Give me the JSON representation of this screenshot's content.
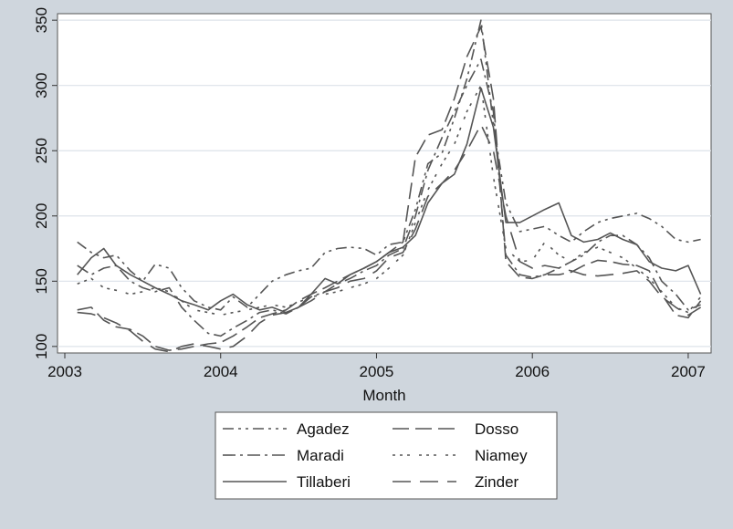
{
  "chart_data": {
    "type": "line",
    "title": "",
    "xlabel": "Month",
    "ylabel": "",
    "xlim": [
      2003,
      2007.1
    ],
    "ylim": [
      95,
      355
    ],
    "x_ticks": [
      "2003",
      "2004",
      "2005",
      "2006",
      "2007"
    ],
    "x_tick_values": [
      2003,
      2004,
      2005,
      2006,
      2007
    ],
    "y_ticks": [
      "100",
      "150",
      "200",
      "250",
      "300",
      "350"
    ],
    "y_tick_values": [
      100,
      150,
      200,
      250,
      300,
      350
    ],
    "grid": "horizontal",
    "legend": {
      "position": "bottom",
      "columns": 2
    },
    "line_color": "#555555",
    "series": [
      {
        "name": "Agadez",
        "dash": "12,5,3,5,3,5",
        "x": [
          2003.08,
          2003.17,
          2003.25,
          2003.33,
          2003.42,
          2003.5,
          2003.58,
          2003.67,
          2003.75,
          2003.83,
          2003.92,
          2004.0,
          2004.08,
          2004.17,
          2004.25,
          2004.33,
          2004.42,
          2004.5,
          2004.58,
          2004.67,
          2004.75,
          2004.83,
          2004.92,
          2005.0,
          2005.08,
          2005.17,
          2005.25,
          2005.33,
          2005.42,
          2005.5,
          2005.58,
          2005.67,
          2005.75,
          2005.83,
          2005.92,
          2006.0,
          2006.08,
          2006.17,
          2006.25,
          2006.33,
          2006.42,
          2006.5,
          2006.58,
          2006.67,
          2006.75,
          2006.83,
          2006.92,
          2007.0,
          2007.08
        ],
        "y": [
          180,
          172,
          168,
          170,
          158,
          150,
          163,
          160,
          145,
          135,
          130,
          128,
          138,
          130,
          140,
          150,
          155,
          158,
          160,
          172,
          175,
          176,
          175,
          170,
          178,
          180,
          205,
          240,
          248,
          275,
          305,
          350,
          270,
          210,
          188,
          190,
          192,
          185,
          180,
          188,
          195,
          198,
          200,
          202,
          198,
          192,
          182,
          180,
          182
        ]
      },
      {
        "name": "Dosso",
        "dash": "18,7",
        "x": [
          2003.08,
          2003.17,
          2003.25,
          2003.33,
          2003.42,
          2003.5,
          2003.58,
          2003.67,
          2003.75,
          2003.83,
          2003.92,
          2004.0,
          2004.08,
          2004.17,
          2004.25,
          2004.33,
          2004.42,
          2004.5,
          2004.58,
          2004.67,
          2004.75,
          2004.83,
          2004.92,
          2005.0,
          2005.08,
          2005.17,
          2005.25,
          2005.33,
          2005.42,
          2005.5,
          2005.58,
          2005.67,
          2005.75,
          2005.83,
          2005.92,
          2006.0,
          2006.08,
          2006.17,
          2006.25,
          2006.33,
          2006.42,
          2006.5,
          2006.58,
          2006.67,
          2006.75,
          2006.83,
          2006.92,
          2007.0,
          2007.08
        ],
        "y": [
          128,
          130,
          120,
          115,
          113,
          108,
          100,
          97,
          98,
          100,
          102,
          103,
          108,
          115,
          122,
          125,
          128,
          135,
          140,
          145,
          150,
          155,
          160,
          165,
          172,
          180,
          245,
          262,
          266,
          290,
          322,
          345,
          290,
          165,
          153,
          152,
          155,
          155,
          157,
          162,
          166,
          165,
          163,
          162,
          158,
          140,
          124,
          122,
          135
        ]
      },
      {
        "name": "Maradi",
        "dash": "14,5,3,5",
        "x": [
          2003.08,
          2003.17,
          2003.25,
          2003.33,
          2003.42,
          2003.5,
          2003.58,
          2003.67,
          2003.75,
          2003.83,
          2003.92,
          2004.0,
          2004.08,
          2004.17,
          2004.25,
          2004.33,
          2004.42,
          2004.5,
          2004.58,
          2004.67,
          2004.75,
          2004.83,
          2004.92,
          2005.0,
          2005.08,
          2005.17,
          2005.25,
          2005.33,
          2005.42,
          2005.5,
          2005.58,
          2005.67,
          2005.75,
          2005.83,
          2005.92,
          2006.0,
          2006.08,
          2006.17,
          2006.25,
          2006.33,
          2006.42,
          2006.5,
          2006.58,
          2006.67,
          2006.75,
          2006.83,
          2006.92,
          2007.0,
          2007.08
        ],
        "y": [
          162,
          155,
          160,
          162,
          150,
          145,
          142,
          145,
          130,
          120,
          110,
          108,
          114,
          120,
          126,
          128,
          125,
          130,
          138,
          142,
          148,
          152,
          158,
          162,
          170,
          175,
          200,
          235,
          260,
          280,
          300,
          320,
          280,
          170,
          155,
          153,
          155,
          160,
          165,
          170,
          180,
          185,
          185,
          178,
          168,
          150,
          140,
          128,
          132
        ]
      },
      {
        "name": "Niamey",
        "dash": "3,5,3,5,3,10",
        "x": [
          2003.08,
          2003.17,
          2003.25,
          2003.33,
          2003.42,
          2003.5,
          2003.58,
          2003.67,
          2003.75,
          2003.83,
          2003.92,
          2004.0,
          2004.08,
          2004.17,
          2004.25,
          2004.33,
          2004.42,
          2004.5,
          2004.58,
          2004.67,
          2004.75,
          2004.83,
          2004.92,
          2005.0,
          2005.08,
          2005.17,
          2005.25,
          2005.33,
          2005.42,
          2005.5,
          2005.58,
          2005.67,
          2005.75,
          2005.83,
          2005.92,
          2006.0,
          2006.08,
          2006.17,
          2006.25,
          2006.33,
          2006.42,
          2006.5,
          2006.58,
          2006.67,
          2006.75,
          2006.83,
          2006.92,
          2007.0,
          2007.08
        ],
        "y": [
          148,
          152,
          145,
          143,
          140,
          142,
          145,
          142,
          135,
          128,
          126,
          124,
          126,
          128,
          130,
          132,
          130,
          134,
          138,
          140,
          142,
          145,
          148,
          152,
          160,
          170,
          195,
          220,
          240,
          255,
          280,
          300,
          230,
          175,
          165,
          166,
          180,
          170,
          165,
          172,
          176,
          172,
          168,
          160,
          152,
          142,
          130,
          126,
          138
        ]
      },
      {
        "name": "Tillaberi",
        "dash": "",
        "x": [
          2003.08,
          2003.17,
          2003.25,
          2003.33,
          2003.42,
          2003.5,
          2003.58,
          2003.67,
          2003.75,
          2003.83,
          2003.92,
          2004.0,
          2004.08,
          2004.17,
          2004.25,
          2004.33,
          2004.42,
          2004.5,
          2004.58,
          2004.67,
          2004.75,
          2004.83,
          2004.92,
          2005.0,
          2005.08,
          2005.17,
          2005.25,
          2005.33,
          2005.42,
          2005.5,
          2005.58,
          2005.67,
          2005.75,
          2005.83,
          2005.92,
          2006.0,
          2006.08,
          2006.17,
          2006.25,
          2006.33,
          2006.42,
          2006.5,
          2006.58,
          2006.67,
          2006.75,
          2006.83,
          2006.92,
          2007.0,
          2007.08
        ],
        "y": [
          155,
          168,
          175,
          162,
          155,
          150,
          145,
          140,
          135,
          132,
          128,
          135,
          140,
          132,
          128,
          130,
          126,
          130,
          140,
          152,
          148,
          155,
          160,
          165,
          172,
          176,
          185,
          210,
          225,
          232,
          255,
          298,
          268,
          195,
          195,
          200,
          205,
          210,
          185,
          180,
          182,
          187,
          182,
          178,
          165,
          160,
          158,
          162,
          140
        ]
      },
      {
        "name": "Zinder",
        "dash": "20,10",
        "x": [
          2003.08,
          2003.17,
          2003.25,
          2003.33,
          2003.42,
          2003.5,
          2003.58,
          2003.67,
          2003.75,
          2003.83,
          2003.92,
          2004.0,
          2004.08,
          2004.17,
          2004.25,
          2004.33,
          2004.42,
          2004.5,
          2004.58,
          2004.67,
          2004.75,
          2004.83,
          2004.92,
          2005.0,
          2005.08,
          2005.17,
          2005.25,
          2005.33,
          2005.42,
          2005.5,
          2005.58,
          2005.67,
          2005.75,
          2005.83,
          2005.92,
          2006.0,
          2006.08,
          2006.17,
          2006.25,
          2006.33,
          2006.42,
          2006.5,
          2006.58,
          2006.67,
          2006.75,
          2006.83,
          2006.92,
          2007.0,
          2007.08
        ],
        "y": [
          126,
          125,
          122,
          118,
          112,
          104,
          98,
          96,
          100,
          102,
          100,
          98,
          100,
          108,
          118,
          124,
          126,
          130,
          135,
          142,
          145,
          150,
          152,
          158,
          168,
          172,
          190,
          215,
          225,
          235,
          250,
          270,
          250,
          200,
          165,
          160,
          162,
          160,
          158,
          155,
          154,
          155,
          156,
          158,
          150,
          138,
          130,
          124,
          130
        ]
      }
    ]
  }
}
